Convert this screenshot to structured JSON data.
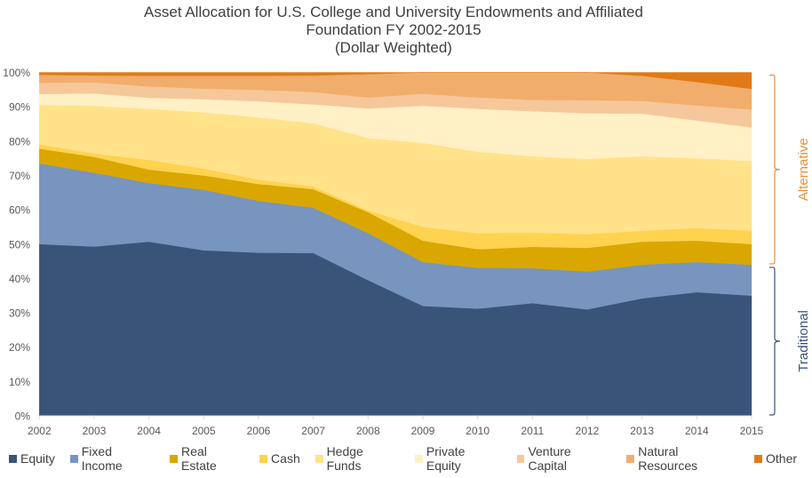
{
  "chart_data": {
    "type": "area",
    "stacked": true,
    "title": [
      "Asset Allocation for U.S. College and University Endowments and Affiliated",
      "Foundation FY 2002-2015",
      "(Dollar Weighted)"
    ],
    "xlabel": "",
    "ylabel": "",
    "ylim": [
      0,
      100
    ],
    "y_ticks": [
      "0%",
      "10%",
      "20%",
      "30%",
      "40%",
      "50%",
      "60%",
      "70%",
      "80%",
      "90%",
      "100%"
    ],
    "y_tick_values": [
      0,
      10,
      20,
      30,
      40,
      50,
      60,
      70,
      80,
      90,
      100
    ],
    "x": [
      "2002",
      "2003",
      "2004",
      "2005",
      "2006",
      "2007",
      "2008",
      "2009",
      "2010",
      "2011",
      "2012",
      "2013",
      "2014",
      "2015"
    ],
    "grid": false,
    "legend_position": "bottom",
    "series": [
      {
        "name": "Equity",
        "color": "#3A5479",
        "values": [
          50.0,
          49.3,
          50.7,
          48.2,
          47.5,
          47.4,
          39.5,
          32.0,
          31.2,
          32.8,
          31.0,
          34.2,
          36.0,
          35.0
        ]
      },
      {
        "name": "Fixed Income",
        "color": "#7795BE",
        "values": [
          23.5,
          21.5,
          17.1,
          17.6,
          15.1,
          13.2,
          13.7,
          12.8,
          11.9,
          10.2,
          11.0,
          9.8,
          8.8,
          9.0
        ]
      },
      {
        "name": "Real Estate",
        "color": "#D9A700",
        "values": [
          4.3,
          4.6,
          3.9,
          4.2,
          4.9,
          5.4,
          6.1,
          6.2,
          5.4,
          6.2,
          6.9,
          6.7,
          6.2,
          6.0
        ]
      },
      {
        "name": "Cash",
        "color": "#FFD24F",
        "values": [
          1.3,
          1.0,
          2.8,
          2.0,
          1.3,
          0.8,
          0.5,
          4.0,
          4.7,
          4.1,
          4.0,
          3.2,
          3.7,
          3.9
        ]
      },
      {
        "name": "Hedge Funds",
        "color": "#FFE28A",
        "values": [
          11.4,
          13.9,
          14.9,
          16.4,
          18.1,
          18.4,
          21.1,
          24.5,
          23.7,
          22.3,
          21.9,
          21.7,
          20.3,
          20.3
        ]
      },
      {
        "name": "Private Equity",
        "color": "#FFF0C5",
        "values": [
          3.2,
          3.6,
          3.2,
          3.8,
          4.7,
          5.5,
          8.6,
          10.8,
          12.5,
          13.1,
          13.3,
          12.4,
          11.0,
          9.8
        ]
      },
      {
        "name": "Venture Capital",
        "color": "#F6C79A",
        "values": [
          3.3,
          3.2,
          3.3,
          3.1,
          3.3,
          3.6,
          3.2,
          3.5,
          3.3,
          3.3,
          3.8,
          3.7,
          4.4,
          5.2
        ]
      },
      {
        "name": "Natural Resources",
        "color": "#F1AD6C",
        "values": [
          2.3,
          2.0,
          3.1,
          3.7,
          4.1,
          4.8,
          6.8,
          6.2,
          7.3,
          8.0,
          8.1,
          7.3,
          6.8,
          6.0
        ]
      },
      {
        "name": "Other",
        "color": "#E07A16",
        "values": [
          0.7,
          0.9,
          1.0,
          1.0,
          1.0,
          0.9,
          0.5,
          0.0,
          0.0,
          0.0,
          0.0,
          1.0,
          2.8,
          4.8
        ]
      }
    ],
    "annotations": [
      {
        "label": "Alternative",
        "color": "#E8913A",
        "range": [
          44,
          100
        ]
      },
      {
        "label": "Traditional",
        "color": "#3A5479",
        "range": [
          0,
          44
        ]
      }
    ]
  }
}
